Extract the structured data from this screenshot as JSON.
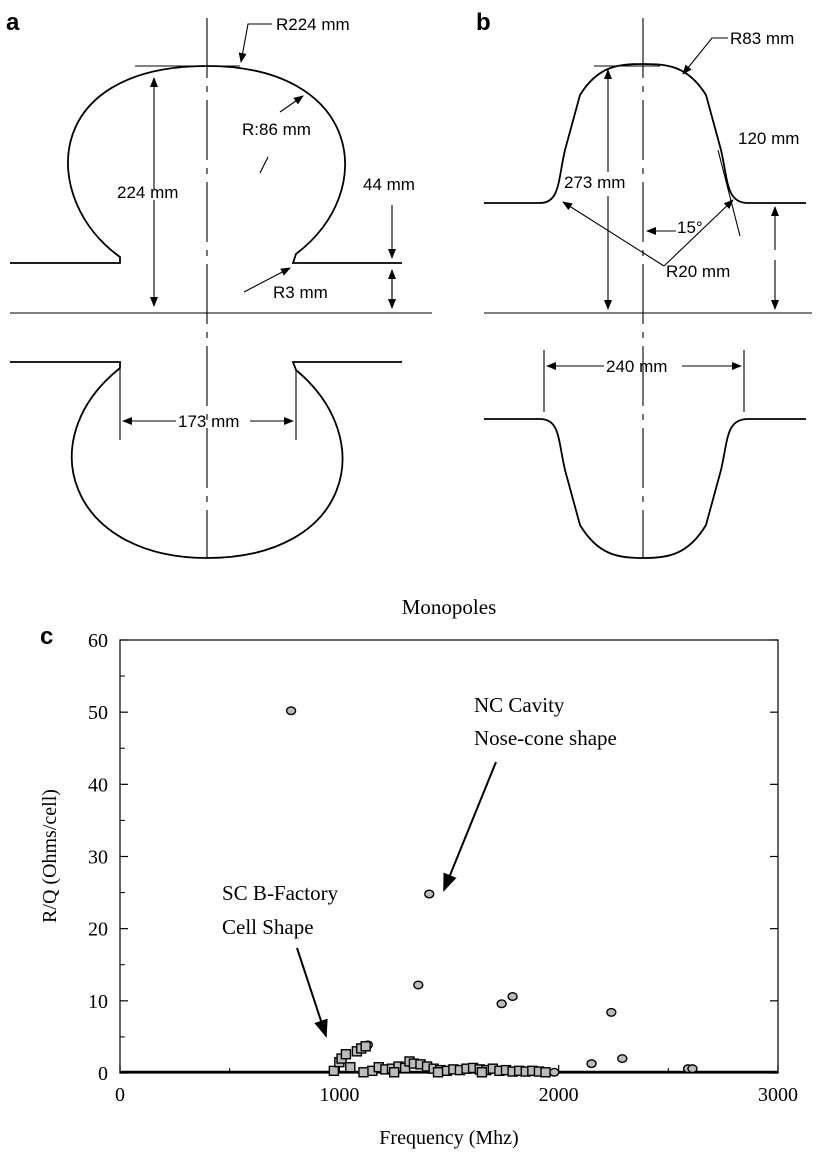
{
  "panels": {
    "a": {
      "letter": "a",
      "labels": {
        "outer_radius": "R224 mm",
        "inner_radius": "R:86 mm",
        "height": "224 mm",
        "side_height": "44 mm",
        "edge_radius": "R3 mm",
        "iris_width": "173 mm"
      }
    },
    "b": {
      "letter": "b",
      "labels": {
        "top_radius": "R83 mm",
        "height": "273 mm",
        "side_height": "120 mm",
        "angle": "15°",
        "corner_radius": "R20 mm",
        "width": "240 mm"
      }
    },
    "c": {
      "letter": "c",
      "title": "Monopoles",
      "annotations": {
        "nc_line1": "NC Cavity",
        "nc_line2": "Nose-cone shape",
        "sc_line1": "SC B-Factory",
        "sc_line2": "Cell Shape"
      }
    }
  },
  "chart_data": {
    "type": "scatter",
    "title": "Monopoles",
    "xlabel": "Frequency (Mhz)",
    "ylabel": "R/Q (Ohms/cell)",
    "xlim": [
      0,
      3000
    ],
    "ylim": [
      0,
      60
    ],
    "xticks": [
      0,
      1000,
      2000,
      3000
    ],
    "yticks": [
      0,
      10,
      20,
      30,
      40,
      50,
      60
    ],
    "grid": false,
    "series": [
      {
        "marker": "circle",
        "points": [
          [
            780,
            50.2
          ],
          [
            1410,
            24.8
          ],
          [
            1360,
            12.2
          ],
          [
            1740,
            9.6
          ],
          [
            1790,
            10.6
          ],
          [
            2240,
            8.4
          ],
          [
            2150,
            1.3
          ],
          [
            2290,
            2.0
          ],
          [
            2590,
            0.6
          ],
          [
            2610,
            0.6
          ],
          [
            1130,
            3.9
          ],
          [
            1980,
            0.1
          ]
        ]
      },
      {
        "marker": "square",
        "points": [
          [
            975,
            0.3
          ],
          [
            1000,
            1.5
          ],
          [
            1010,
            2.0
          ],
          [
            1030,
            2.6
          ],
          [
            1050,
            0.8
          ],
          [
            1080,
            3.0
          ],
          [
            1100,
            3.4
          ],
          [
            1120,
            3.7
          ],
          [
            1150,
            0.3
          ],
          [
            1180,
            0.8
          ],
          [
            1210,
            0.5
          ],
          [
            1240,
            0.6
          ],
          [
            1270,
            0.9
          ],
          [
            1300,
            0.7
          ],
          [
            1320,
            1.6
          ],
          [
            1340,
            1.3
          ],
          [
            1370,
            1.2
          ],
          [
            1400,
            0.9
          ],
          [
            1430,
            0.6
          ],
          [
            1460,
            0.4
          ],
          [
            1490,
            0.3
          ],
          [
            1520,
            0.5
          ],
          [
            1550,
            0.4
          ],
          [
            1580,
            0.6
          ],
          [
            1610,
            0.7
          ],
          [
            1640,
            0.5
          ],
          [
            1670,
            0.4
          ],
          [
            1700,
            0.6
          ],
          [
            1730,
            0.3
          ],
          [
            1760,
            0.4
          ],
          [
            1790,
            0.2
          ],
          [
            1820,
            0.3
          ],
          [
            1850,
            0.2
          ],
          [
            1880,
            0.3
          ],
          [
            1910,
            0.2
          ],
          [
            1940,
            0.1
          ],
          [
            1110,
            0.1
          ],
          [
            1250,
            0.1
          ],
          [
            1450,
            0.1
          ],
          [
            1650,
            0.1
          ]
        ]
      }
    ]
  }
}
